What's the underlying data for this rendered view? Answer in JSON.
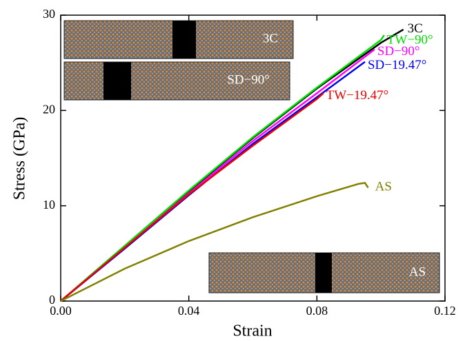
{
  "chart_data": {
    "type": "line",
    "xlabel": "Strain",
    "ylabel": "Stress (GPa)",
    "xlim": [
      0,
      0.12
    ],
    "xticks": [
      {
        "value": 0,
        "label": "0.00"
      },
      0.04,
      0.08,
      0.12
    ],
    "ylim": [
      0,
      30
    ],
    "yticks": [
      0,
      10,
      20,
      30
    ],
    "series": [
      {
        "name": "3C",
        "color": "#000000",
        "x": [
          0,
          0.02,
          0.04,
          0.06,
          0.08,
          0.1,
          0.107
        ],
        "values": [
          0,
          5.7,
          11.5,
          17.1,
          22.3,
          27.1,
          28.5
        ]
      },
      {
        "name": "TW−90°",
        "color": "#00e000",
        "x": [
          0,
          0.02,
          0.04,
          0.06,
          0.08,
          0.1,
          0.101
        ],
        "values": [
          0,
          5.8,
          11.6,
          17.2,
          22.4,
          27.4,
          27.9
        ]
      },
      {
        "name": "SD−90°",
        "color": "#ff00ff",
        "x": [
          0,
          0.02,
          0.04,
          0.06,
          0.08,
          0.098
        ],
        "values": [
          0,
          5.6,
          11.3,
          16.8,
          21.8,
          26.4
        ]
      },
      {
        "name": "SD−19.47°",
        "color": "#0000ee",
        "x": [
          0,
          0.02,
          0.04,
          0.06,
          0.08,
          0.095
        ],
        "values": [
          0,
          5.5,
          11.1,
          16.5,
          21.4,
          25.1
        ]
      },
      {
        "name": "TW−19.47°",
        "color": "#ee0000",
        "x": [
          0,
          0.02,
          0.04,
          0.06,
          0.08,
          0.082
        ],
        "values": [
          0,
          5.6,
          11.2,
          16.3,
          21.2,
          21.8
        ]
      },
      {
        "name": "AS",
        "color": "#808000",
        "x": [
          0,
          0.02,
          0.04,
          0.06,
          0.08,
          0.093,
          0.095,
          0.096
        ],
        "values": [
          0,
          3.4,
          6.3,
          8.8,
          11.0,
          12.3,
          12.4,
          11.9
        ]
      }
    ],
    "insets": [
      "3C",
      "SD−90°",
      "AS"
    ]
  }
}
